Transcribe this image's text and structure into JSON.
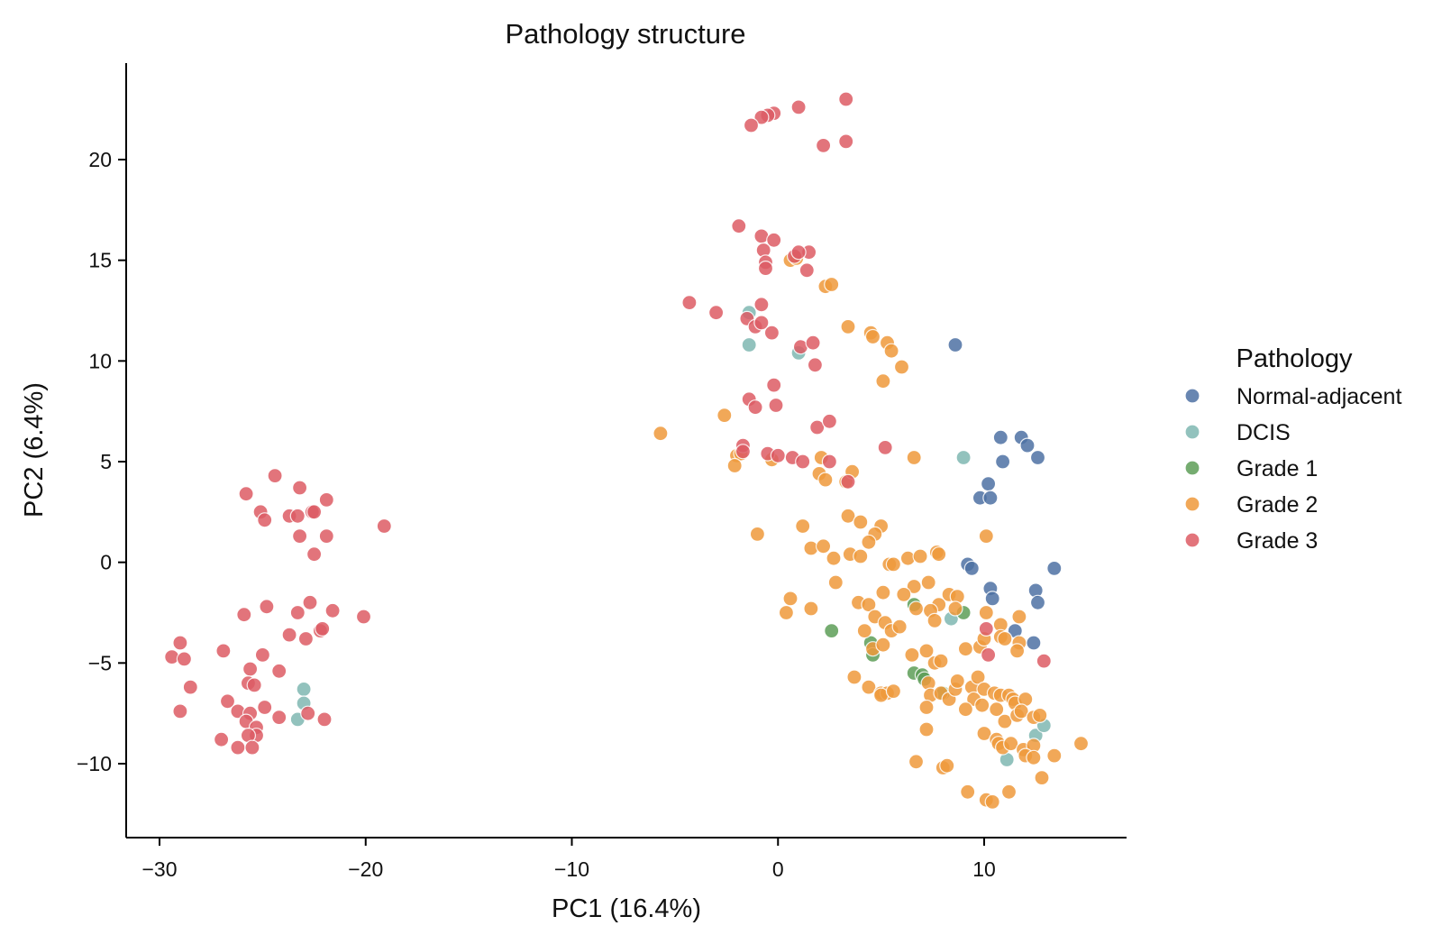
{
  "chart_data": {
    "type": "scatter",
    "title": "Pathology structure",
    "xlabel": "PC1 (16.4%)",
    "ylabel": "PC2 (6.4%)",
    "xlim": [
      -31.5,
      17
    ],
    "ylim": [
      -13.5,
      24.5
    ],
    "xticks": [
      -30,
      -20,
      -10,
      0,
      10
    ],
    "yticks": [
      -10,
      -5,
      0,
      5,
      10,
      15,
      20
    ],
    "xtick_labels": [
      "−30",
      "−20",
      "−10",
      "0",
      "10"
    ],
    "ytick_labels": [
      "−10",
      "−5",
      "0",
      "5",
      "10",
      "15",
      "20"
    ],
    "grid": false,
    "legend": {
      "title": "Pathology",
      "placement": "right"
    },
    "series": [
      {
        "name": "Normal-adjacent",
        "color": "#4e72a4",
        "points": [
          [
            8.6,
            10.8
          ],
          [
            10.8,
            6.2
          ],
          [
            11.8,
            6.2
          ],
          [
            12.1,
            5.8
          ],
          [
            12.6,
            5.2
          ],
          [
            10.9,
            5.0
          ],
          [
            10.2,
            3.9
          ],
          [
            9.8,
            3.2
          ],
          [
            10.3,
            3.2
          ],
          [
            9.2,
            -0.1
          ],
          [
            9.4,
            -0.3
          ],
          [
            13.4,
            -0.3
          ],
          [
            10.3,
            -1.3
          ],
          [
            10.4,
            -1.8
          ],
          [
            12.5,
            -1.4
          ],
          [
            12.6,
            -2.0
          ],
          [
            11.5,
            -3.4
          ],
          [
            12.4,
            -4.0
          ]
        ]
      },
      {
        "name": "DCIS",
        "color": "#7fb8b2",
        "points": [
          [
            -1.4,
            12.4
          ],
          [
            -1.4,
            10.8
          ],
          [
            1.0,
            10.4
          ],
          [
            9.0,
            5.2
          ],
          [
            8.4,
            -2.8
          ],
          [
            11.1,
            -9.8
          ],
          [
            12.5,
            -8.6
          ],
          [
            12.9,
            -8.1
          ],
          [
            -23.0,
            -6.3
          ],
          [
            -23.0,
            -7.0
          ],
          [
            -23.3,
            -7.8
          ]
        ]
      },
      {
        "name": "Grade 1",
        "color": "#5e9e58",
        "points": [
          [
            2.6,
            -3.4
          ],
          [
            4.5,
            -4.0
          ],
          [
            4.6,
            -4.6
          ],
          [
            6.6,
            -2.1
          ],
          [
            9.0,
            -2.5
          ],
          [
            6.6,
            -5.5
          ],
          [
            7.0,
            -5.6
          ],
          [
            7.1,
            -5.8
          ],
          [
            8.0,
            -6.5
          ]
        ]
      },
      {
        "name": "Grade 2",
        "color": "#ef9a3c",
        "points": [
          [
            0.6,
            15.0
          ],
          [
            0.9,
            15.1
          ],
          [
            2.3,
            13.7
          ],
          [
            2.6,
            13.8
          ],
          [
            3.4,
            11.7
          ],
          [
            4.5,
            11.4
          ],
          [
            4.6,
            11.2
          ],
          [
            5.3,
            10.9
          ],
          [
            5.5,
            10.5
          ],
          [
            6.0,
            9.7
          ],
          [
            5.1,
            9.0
          ],
          [
            -5.7,
            6.4
          ],
          [
            -2.6,
            7.3
          ],
          [
            -2.0,
            5.3
          ],
          [
            -1.8,
            5.4
          ],
          [
            -2.1,
            4.8
          ],
          [
            -0.3,
            5.1
          ],
          [
            2.1,
            5.2
          ],
          [
            2.0,
            4.4
          ],
          [
            2.3,
            4.1
          ],
          [
            3.3,
            4.0
          ],
          [
            3.6,
            4.5
          ],
          [
            6.6,
            5.2
          ],
          [
            -1.0,
            1.4
          ],
          [
            1.2,
            1.8
          ],
          [
            3.4,
            2.3
          ],
          [
            4.0,
            2.0
          ],
          [
            5.0,
            1.8
          ],
          [
            4.7,
            1.4
          ],
          [
            4.4,
            1.0
          ],
          [
            1.6,
            0.7
          ],
          [
            2.2,
            0.8
          ],
          [
            2.7,
            0.2
          ],
          [
            3.5,
            0.4
          ],
          [
            4.0,
            0.3
          ],
          [
            5.4,
            -0.1
          ],
          [
            5.6,
            -0.1
          ],
          [
            6.3,
            0.2
          ],
          [
            6.9,
            0.3
          ],
          [
            7.7,
            0.5
          ],
          [
            7.8,
            0.4
          ],
          [
            10.1,
            1.3
          ],
          [
            2.8,
            -1.0
          ],
          [
            0.6,
            -1.8
          ],
          [
            1.6,
            -2.3
          ],
          [
            0.4,
            -2.5
          ],
          [
            3.9,
            -2.0
          ],
          [
            4.4,
            -2.1
          ],
          [
            5.1,
            -1.5
          ],
          [
            6.6,
            -1.2
          ],
          [
            6.1,
            -1.6
          ],
          [
            7.3,
            -1.0
          ],
          [
            8.3,
            -1.6
          ],
          [
            8.7,
            -1.7
          ],
          [
            4.7,
            -2.7
          ],
          [
            5.2,
            -3.0
          ],
          [
            5.5,
            -3.4
          ],
          [
            5.9,
            -3.2
          ],
          [
            6.7,
            -2.3
          ],
          [
            7.8,
            -2.1
          ],
          [
            7.4,
            -2.4
          ],
          [
            7.6,
            -2.9
          ],
          [
            8.6,
            -2.3
          ],
          [
            10.1,
            -2.5
          ],
          [
            10.8,
            -3.1
          ],
          [
            11.7,
            -2.7
          ],
          [
            4.2,
            -3.4
          ],
          [
            4.6,
            -4.3
          ],
          [
            5.1,
            -4.1
          ],
          [
            6.5,
            -4.6
          ],
          [
            7.2,
            -4.4
          ],
          [
            7.6,
            -5.0
          ],
          [
            7.9,
            -4.9
          ],
          [
            9.8,
            -4.2
          ],
          [
            9.1,
            -4.3
          ],
          [
            10.0,
            -3.8
          ],
          [
            10.8,
            -3.7
          ],
          [
            11.0,
            -3.8
          ],
          [
            11.7,
            -4.0
          ],
          [
            11.6,
            -4.4
          ],
          [
            3.7,
            -5.7
          ],
          [
            4.4,
            -6.2
          ],
          [
            5.0,
            -6.5
          ],
          [
            5.3,
            -6.5
          ],
          [
            5.0,
            -6.6
          ],
          [
            5.6,
            -6.4
          ],
          [
            7.3,
            -6.0
          ],
          [
            7.4,
            -6.6
          ],
          [
            7.2,
            -7.2
          ],
          [
            7.9,
            -6.5
          ],
          [
            8.3,
            -6.8
          ],
          [
            8.6,
            -6.3
          ],
          [
            8.7,
            -5.9
          ],
          [
            9.4,
            -6.2
          ],
          [
            9.5,
            -6.8
          ],
          [
            9.7,
            -5.7
          ],
          [
            10.0,
            -6.3
          ],
          [
            10.5,
            -6.5
          ],
          [
            10.8,
            -6.6
          ],
          [
            11.2,
            -6.6
          ],
          [
            11.4,
            -6.8
          ],
          [
            11.5,
            -7.0
          ],
          [
            12.0,
            -6.8
          ],
          [
            9.1,
            -7.3
          ],
          [
            9.9,
            -7.1
          ],
          [
            10.6,
            -7.3
          ],
          [
            11.0,
            -7.9
          ],
          [
            11.6,
            -7.6
          ],
          [
            11.8,
            -7.4
          ],
          [
            12.4,
            -7.7
          ],
          [
            12.7,
            -7.6
          ],
          [
            10.0,
            -8.5
          ],
          [
            10.6,
            -8.8
          ],
          [
            10.7,
            -9.0
          ],
          [
            10.9,
            -9.2
          ],
          [
            11.3,
            -9.0
          ],
          [
            11.9,
            -9.3
          ],
          [
            12.4,
            -9.1
          ],
          [
            12.0,
            -9.6
          ],
          [
            12.4,
            -9.7
          ],
          [
            13.4,
            -9.6
          ],
          [
            14.7,
            -9.0
          ],
          [
            7.2,
            -8.3
          ],
          [
            6.7,
            -9.9
          ],
          [
            8.0,
            -10.2
          ],
          [
            8.2,
            -10.1
          ],
          [
            12.8,
            -10.7
          ],
          [
            9.2,
            -11.4
          ],
          [
            10.1,
            -11.8
          ],
          [
            10.4,
            -11.9
          ],
          [
            11.2,
            -11.4
          ]
        ]
      },
      {
        "name": "Grade 3",
        "color": "#dd5c65",
        "points": [
          [
            3.3,
            23.0
          ],
          [
            1.0,
            22.6
          ],
          [
            -0.2,
            22.3
          ],
          [
            -0.5,
            22.2
          ],
          [
            -0.8,
            22.1
          ],
          [
            -1.3,
            21.7
          ],
          [
            3.3,
            20.9
          ],
          [
            2.2,
            20.7
          ],
          [
            -1.9,
            16.7
          ],
          [
            -0.8,
            16.2
          ],
          [
            -0.2,
            16.0
          ],
          [
            -0.7,
            15.5
          ],
          [
            0.8,
            15.2
          ],
          [
            1.5,
            15.4
          ],
          [
            -0.6,
            14.9
          ],
          [
            -0.6,
            14.6
          ],
          [
            1.4,
            14.5
          ],
          [
            1.0,
            15.4
          ],
          [
            -4.3,
            12.9
          ],
          [
            -3.0,
            12.4
          ],
          [
            -0.8,
            12.8
          ],
          [
            -1.5,
            12.1
          ],
          [
            -1.1,
            11.7
          ],
          [
            -0.8,
            11.9
          ],
          [
            -0.3,
            11.4
          ],
          [
            1.1,
            10.7
          ],
          [
            1.7,
            10.9
          ],
          [
            1.8,
            9.8
          ],
          [
            -0.2,
            8.8
          ],
          [
            -1.4,
            8.1
          ],
          [
            -1.1,
            7.7
          ],
          [
            -0.1,
            7.8
          ],
          [
            1.9,
            6.7
          ],
          [
            2.5,
            7.0
          ],
          [
            -1.7,
            5.8
          ],
          [
            -1.7,
            5.5
          ],
          [
            -0.5,
            5.4
          ],
          [
            0.0,
            5.3
          ],
          [
            0.7,
            5.2
          ],
          [
            1.2,
            5.0
          ],
          [
            2.5,
            5.0
          ],
          [
            3.4,
            4.0
          ],
          [
            5.2,
            5.7
          ],
          [
            10.1,
            -3.3
          ],
          [
            10.2,
            -4.6
          ],
          [
            12.9,
            -4.9
          ],
          [
            -24.4,
            4.3
          ],
          [
            -25.8,
            3.4
          ],
          [
            -23.2,
            3.7
          ],
          [
            -21.9,
            3.1
          ],
          [
            -25.1,
            2.5
          ],
          [
            -24.9,
            2.1
          ],
          [
            -23.7,
            2.3
          ],
          [
            -23.3,
            2.3
          ],
          [
            -22.6,
            2.5
          ],
          [
            -22.5,
            2.5
          ],
          [
            -19.1,
            1.8
          ],
          [
            -23.2,
            1.3
          ],
          [
            -21.9,
            1.3
          ],
          [
            -22.5,
            0.4
          ],
          [
            -24.8,
            -2.2
          ],
          [
            -25.9,
            -2.6
          ],
          [
            -22.7,
            -2.0
          ],
          [
            -23.3,
            -2.5
          ],
          [
            -21.6,
            -2.4
          ],
          [
            -20.1,
            -2.7
          ],
          [
            -22.2,
            -3.4
          ],
          [
            -22.1,
            -3.3
          ],
          [
            -23.7,
            -3.6
          ],
          [
            -22.9,
            -3.8
          ],
          [
            -29.0,
            -4.0
          ],
          [
            -29.4,
            -4.7
          ],
          [
            -28.8,
            -4.8
          ],
          [
            -26.9,
            -4.4
          ],
          [
            -25.0,
            -4.6
          ],
          [
            -25.6,
            -5.3
          ],
          [
            -24.2,
            -5.4
          ],
          [
            -28.5,
            -6.2
          ],
          [
            -25.7,
            -6.0
          ],
          [
            -25.4,
            -6.1
          ],
          [
            -26.7,
            -6.9
          ],
          [
            -26.2,
            -7.4
          ],
          [
            -25.6,
            -7.5
          ],
          [
            -24.9,
            -7.2
          ],
          [
            -24.2,
            -7.7
          ],
          [
            -22.8,
            -7.5
          ],
          [
            -22.0,
            -7.8
          ],
          [
            -29.0,
            -7.4
          ],
          [
            -25.8,
            -7.9
          ],
          [
            -25.3,
            -8.2
          ],
          [
            -25.3,
            -8.6
          ],
          [
            -25.7,
            -8.6
          ],
          [
            -27.0,
            -8.8
          ],
          [
            -26.2,
            -9.2
          ],
          [
            -25.5,
            -9.2
          ]
        ]
      }
    ]
  }
}
